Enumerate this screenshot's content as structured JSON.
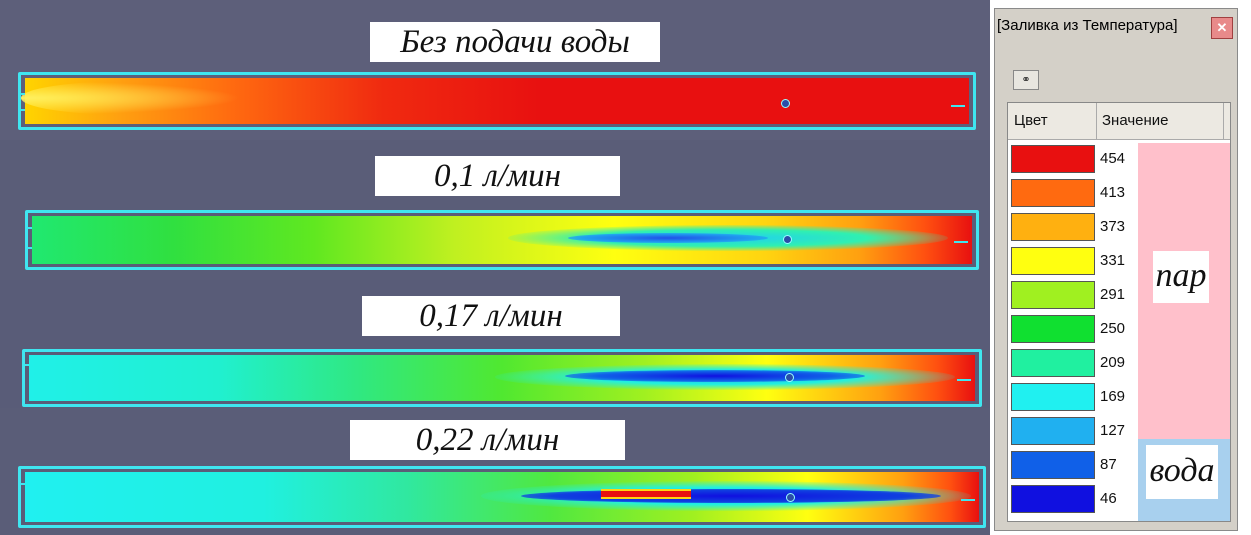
{
  "captions": [
    "Без подачи воды",
    "0,1 л/мин",
    "0,17 л/мин",
    "0,22 л/мин"
  ],
  "legend": {
    "title": "[Заливка из Температура]",
    "toolbar_icon": "link-icon",
    "headers": {
      "color": "Цвет",
      "value": "Значение"
    },
    "rows": [
      {
        "color": "#e81010",
        "value": "454"
      },
      {
        "color": "#ff6a10",
        "value": "413"
      },
      {
        "color": "#ffb010",
        "value": "373"
      },
      {
        "color": "#ffff10",
        "value": "331"
      },
      {
        "color": "#a0f020",
        "value": "291"
      },
      {
        "color": "#10e030",
        "value": "250"
      },
      {
        "color": "#20f0a0",
        "value": "209"
      },
      {
        "color": "#20f0f0",
        "value": "169"
      },
      {
        "color": "#20b0f0",
        "value": "127"
      },
      {
        "color": "#1060e8",
        "value": "87"
      },
      {
        "color": "#1010e0",
        "value": "46"
      }
    ],
    "zones": {
      "steam": "пар",
      "water": "вода"
    }
  },
  "colors": {
    "background": "#5d5f7a",
    "outline": "#3fe6f0",
    "steam_zone": "#ffc0cb",
    "water_zone": "#a8d0ee"
  }
}
